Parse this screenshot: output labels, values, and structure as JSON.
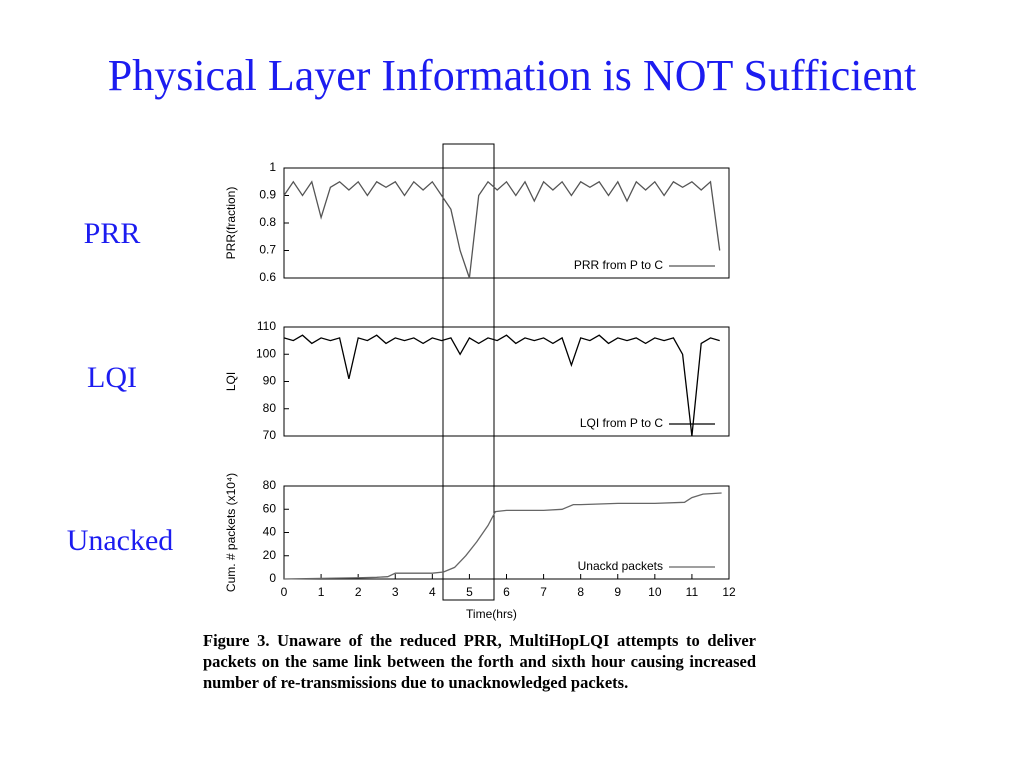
{
  "title": "Physical Layer Information is NOT Sufficient",
  "side_labels": [
    "PRR",
    "LQI",
    "Unacked"
  ],
  "caption": "Figure 3. Unaware of the reduced PRR, MultiHopLQI attempts to deliver packets on the same link between the forth and sixth hour causing increased number of re-transmissions due to unacknowledged packets.",
  "chart_data": [
    {
      "type": "line",
      "ylabel": "PRR(fraction)",
      "xlim": [
        0,
        12
      ],
      "ylim": [
        0.6,
        1
      ],
      "yticks": [
        0.6,
        0.7,
        0.8,
        0.9,
        1
      ],
      "legend": "lower right",
      "x": [
        0,
        0.25,
        0.5,
        0.75,
        1,
        1.25,
        1.5,
        1.75,
        2,
        2.25,
        2.5,
        2.75,
        3,
        3.25,
        3.5,
        3.75,
        4,
        4.25,
        4.5,
        4.75,
        5,
        5.25,
        5.5,
        5.75,
        6,
        6.25,
        6.5,
        6.75,
        7,
        7.25,
        7.5,
        7.75,
        8,
        8.25,
        8.5,
        8.75,
        9,
        9.25,
        9.5,
        9.75,
        10,
        10.25,
        10.5,
        10.75,
        11,
        11.25,
        11.5,
        11.75
      ],
      "series": [
        {
          "name": "PRR from P to C",
          "color": "#555555",
          "values": [
            0.9,
            0.95,
            0.9,
            0.95,
            0.82,
            0.93,
            0.95,
            0.92,
            0.95,
            0.9,
            0.95,
            0.93,
            0.95,
            0.9,
            0.95,
            0.92,
            0.95,
            0.9,
            0.85,
            0.7,
            0.6,
            0.9,
            0.95,
            0.92,
            0.95,
            0.9,
            0.95,
            0.88,
            0.95,
            0.92,
            0.95,
            0.9,
            0.95,
            0.93,
            0.95,
            0.9,
            0.95,
            0.88,
            0.95,
            0.92,
            0.95,
            0.9,
            0.95,
            0.93,
            0.95,
            0.92,
            0.95,
            0.7
          ]
        }
      ]
    },
    {
      "type": "line",
      "ylabel": "LQI",
      "xlim": [
        0,
        12
      ],
      "ylim": [
        70,
        110
      ],
      "yticks": [
        70,
        80,
        90,
        100,
        110
      ],
      "legend": "lower right",
      "x": [
        0,
        0.25,
        0.5,
        0.75,
        1,
        1.25,
        1.5,
        1.75,
        2,
        2.25,
        2.5,
        2.75,
        3,
        3.25,
        3.5,
        3.75,
        4,
        4.25,
        4.5,
        4.75,
        5,
        5.25,
        5.5,
        5.75,
        6,
        6.25,
        6.5,
        6.75,
        7,
        7.25,
        7.5,
        7.75,
        8,
        8.25,
        8.5,
        8.75,
        9,
        9.25,
        9.5,
        9.75,
        10,
        10.25,
        10.5,
        10.75,
        11,
        11.25,
        11.5,
        11.75
      ],
      "series": [
        {
          "name": "LQI from P to C",
          "color": "#000000",
          "values": [
            106,
            105,
            107,
            104,
            106,
            105,
            106,
            91,
            106,
            105,
            107,
            104,
            106,
            105,
            106,
            104,
            106,
            105,
            106,
            100,
            106,
            104,
            106,
            105,
            107,
            104,
            106,
            105,
            106,
            104,
            106,
            96,
            106,
            105,
            107,
            104,
            106,
            105,
            106,
            104,
            106,
            105,
            106,
            100,
            70,
            104,
            106,
            105
          ]
        }
      ]
    },
    {
      "type": "line",
      "ylabel": "Cum. # packets (x10⁴)",
      "xlabel": "Time(hrs)",
      "xlim": [
        0,
        12
      ],
      "ylim": [
        0,
        80
      ],
      "yticks": [
        0,
        20,
        40,
        60,
        80
      ],
      "xticks": [
        0,
        1,
        2,
        3,
        4,
        5,
        6,
        7,
        8,
        9,
        10,
        11,
        12
      ],
      "legend": "lower right",
      "x": [
        0,
        1,
        2,
        2.5,
        2.8,
        3,
        4,
        4.3,
        4.6,
        4.9,
        5.2,
        5.5,
        5.7,
        6,
        6.5,
        7,
        7.5,
        7.8,
        8,
        9,
        10,
        10.8,
        11,
        11.3,
        11.8
      ],
      "series": [
        {
          "name": "Unackd packets",
          "color": "#666666",
          "values": [
            0,
            0.5,
            1,
            1.5,
            2,
            5,
            5,
            6,
            10,
            20,
            32,
            46,
            58,
            59,
            59,
            59,
            60,
            64,
            64,
            65,
            65,
            66,
            70,
            73,
            74
          ]
        }
      ]
    }
  ]
}
